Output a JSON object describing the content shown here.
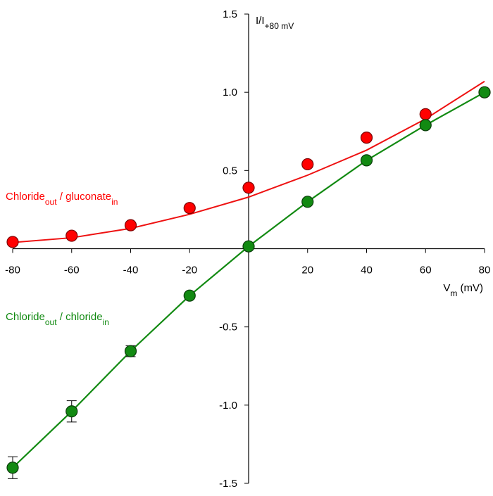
{
  "chart_data": {
    "type": "scatter",
    "xlabel": [
      {
        "text": "V"
      },
      {
        "text": "m",
        "sub": true
      },
      {
        "text": " (mV)"
      }
    ],
    "ylabel": [
      {
        "text": "I/I"
      },
      {
        "text": "+80 mV",
        "sub": true
      }
    ],
    "xlim": [
      -80,
      80
    ],
    "ylim": [
      -1.5,
      1.5
    ],
    "xticks": [
      -80,
      -60,
      -40,
      -20,
      20,
      40,
      60,
      80
    ],
    "yticks": [
      1.5,
      {
        "value": 1,
        "label": "1.0"
      },
      0.5,
      -0.5,
      {
        "value": -1,
        "label": "-1.0"
      },
      -1.5
    ],
    "series": [
      {
        "label": [
          {
            "text": "Chloride"
          },
          {
            "text": "out",
            "sub": true
          },
          {
            "text": " / gluconate"
          },
          {
            "text": "in",
            "sub": true
          }
        ],
        "color": "#ff0000",
        "edge": "#7a0000",
        "x": [
          -80,
          -60,
          -40,
          -20,
          0,
          20,
          40,
          60,
          80
        ],
        "values": [
          0.043,
          0.083,
          0.15,
          0.26,
          0.39,
          0.54,
          0.71,
          0.86,
          1.0
        ],
        "fit": {
          "color": "#ee1111",
          "x": [
            -80,
            -60,
            -40,
            -20,
            0,
            20,
            40,
            60,
            80
          ],
          "values": [
            0.04,
            0.07,
            0.13,
            0.22,
            0.33,
            0.47,
            0.63,
            0.83,
            1.07
          ]
        }
      },
      {
        "label": [
          {
            "text": "Chloride"
          },
          {
            "text": "out",
            "sub": true
          },
          {
            "text": " / chloride"
          },
          {
            "text": "in",
            "sub": true
          }
        ],
        "color": "#128a12",
        "edge": "#0a3d0a",
        "line": true,
        "x": [
          -80,
          -60,
          -40,
          -20,
          0,
          20,
          40,
          60,
          80
        ],
        "values": [
          -1.4,
          -1.04,
          -0.655,
          -0.3,
          0.015,
          0.3,
          0.565,
          0.79,
          1.0
        ],
        "errors": [
          0.07,
          0.068,
          0.035,
          0.02,
          0.01,
          0.015,
          0.015,
          0.015,
          0.01
        ]
      }
    ]
  }
}
